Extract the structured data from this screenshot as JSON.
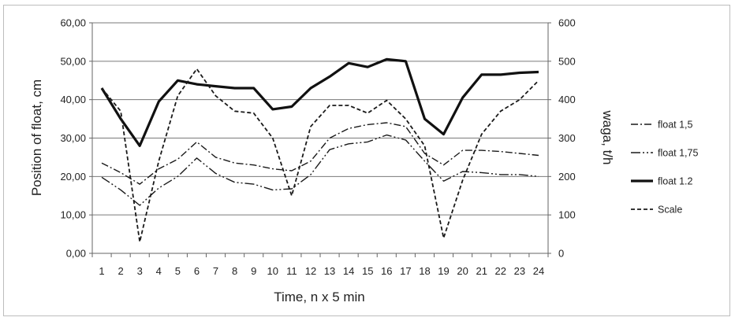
{
  "chart_data": {
    "type": "line",
    "title": "",
    "xlabel": "Time, n x 5 min",
    "ylabel_left": "Position of float, cm",
    "ylabel_right": "waga, t/h",
    "categories": [
      "1",
      "2",
      "3",
      "4",
      "5",
      "6",
      "7",
      "8",
      "9",
      "10",
      "11",
      "12",
      "13",
      "14",
      "15",
      "16",
      "17",
      "18",
      "19",
      "20",
      "21",
      "22",
      "23",
      "24"
    ],
    "y_left": {
      "min": 0,
      "max": 60,
      "step": 10,
      "labels": [
        "0,00",
        "10,00",
        "20,00",
        "30,00",
        "40,00",
        "50,00",
        "60,00"
      ]
    },
    "y_right": {
      "min": 0,
      "max": 600,
      "step": 100,
      "labels": [
        "0",
        "100",
        "200",
        "300",
        "400",
        "500",
        "600"
      ]
    },
    "grid": true,
    "legend_position": "right",
    "series": [
      {
        "name": "float 1,5",
        "axis": "left",
        "style": "dashdot",
        "color": "#1a1a1a",
        "values": [
          23.5,
          21,
          18,
          22,
          24.5,
          29,
          25,
          23.5,
          23,
          22,
          21.5,
          24,
          30,
          32.5,
          33.5,
          34,
          33,
          26,
          23,
          26.8,
          26.8,
          26.5,
          26,
          25.5
        ]
      },
      {
        "name": "float 1,75",
        "axis": "left",
        "style": "dashdotdot",
        "color": "#1a1a1a",
        "values": [
          19.8,
          16.5,
          12.5,
          17,
          20,
          24.8,
          20.8,
          18.5,
          18,
          16.5,
          16.8,
          20.5,
          27,
          28.5,
          29,
          30.8,
          29.5,
          24,
          18.8,
          21.3,
          21,
          20.5,
          20.5,
          20
        ]
      },
      {
        "name": "float 1.2",
        "axis": "left",
        "style": "solid",
        "color": "#111111",
        "values": [
          43,
          35,
          28,
          39.5,
          45,
          44,
          43.5,
          43,
          43,
          37.5,
          38.2,
          43,
          46,
          49.5,
          48.5,
          50.5,
          50,
          35,
          31,
          40.5,
          46.5,
          46.5,
          47,
          47.2
        ]
      },
      {
        "name": "Scale",
        "axis": "right",
        "style": "dashed",
        "color": "#1a1a1a",
        "values": [
          430,
          370,
          30,
          240,
          410,
          480,
          410,
          370,
          365,
          300,
          150,
          330,
          385,
          385,
          365,
          398,
          350,
          280,
          40,
          190,
          310,
          370,
          400,
          450
        ]
      }
    ]
  }
}
